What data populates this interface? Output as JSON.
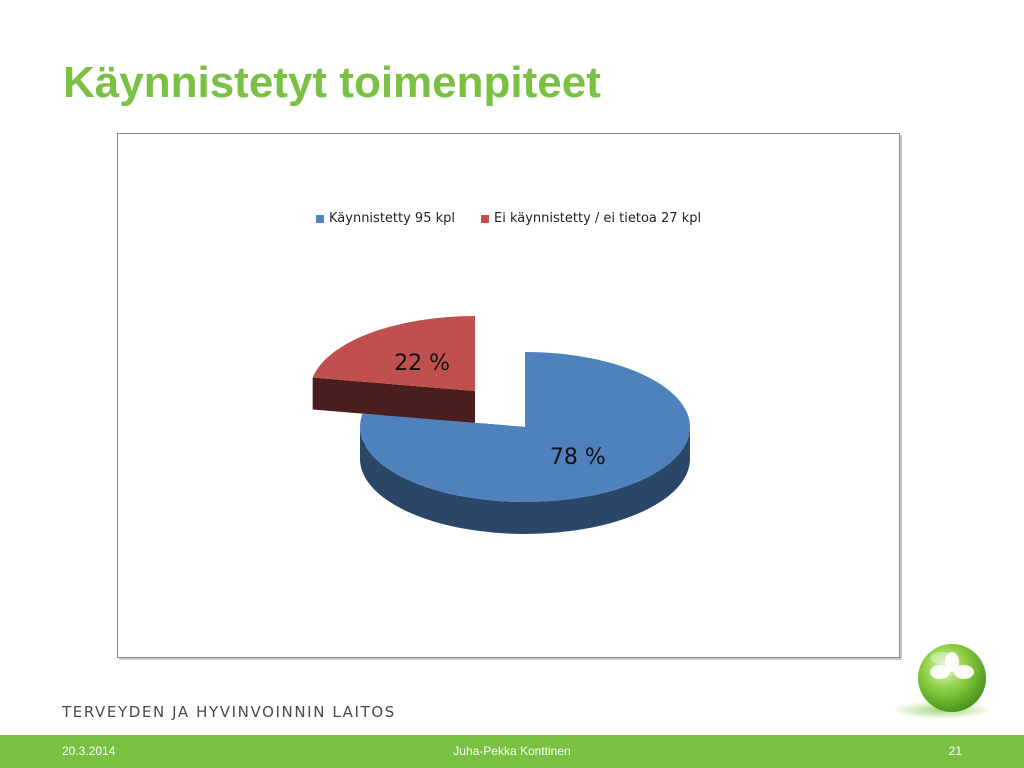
{
  "slide": {
    "title": "Käynnistetyt toimenpiteet",
    "organization": "TERVEYDEN JA HYVINVOINNIN LAITOS",
    "footer": {
      "date": "20.3.2014",
      "author": "Juha-Pekka Konttinen",
      "page": "21"
    },
    "accent_color": "#7ac143",
    "logo_icon": "green-sphere-logo-icon"
  },
  "chart_data": {
    "type": "pie",
    "title": "",
    "style": "3d-exploded",
    "legend_placement": "top",
    "series": [
      {
        "name": "Käynnistetty 95 kpl",
        "value": 95,
        "label": "78 %",
        "color": "#4f81bd"
      },
      {
        "name": "Ei käynnistetty / ei tietoa 27 kpl",
        "value": 27,
        "label": "22 %",
        "color": "#c0504d"
      }
    ]
  }
}
